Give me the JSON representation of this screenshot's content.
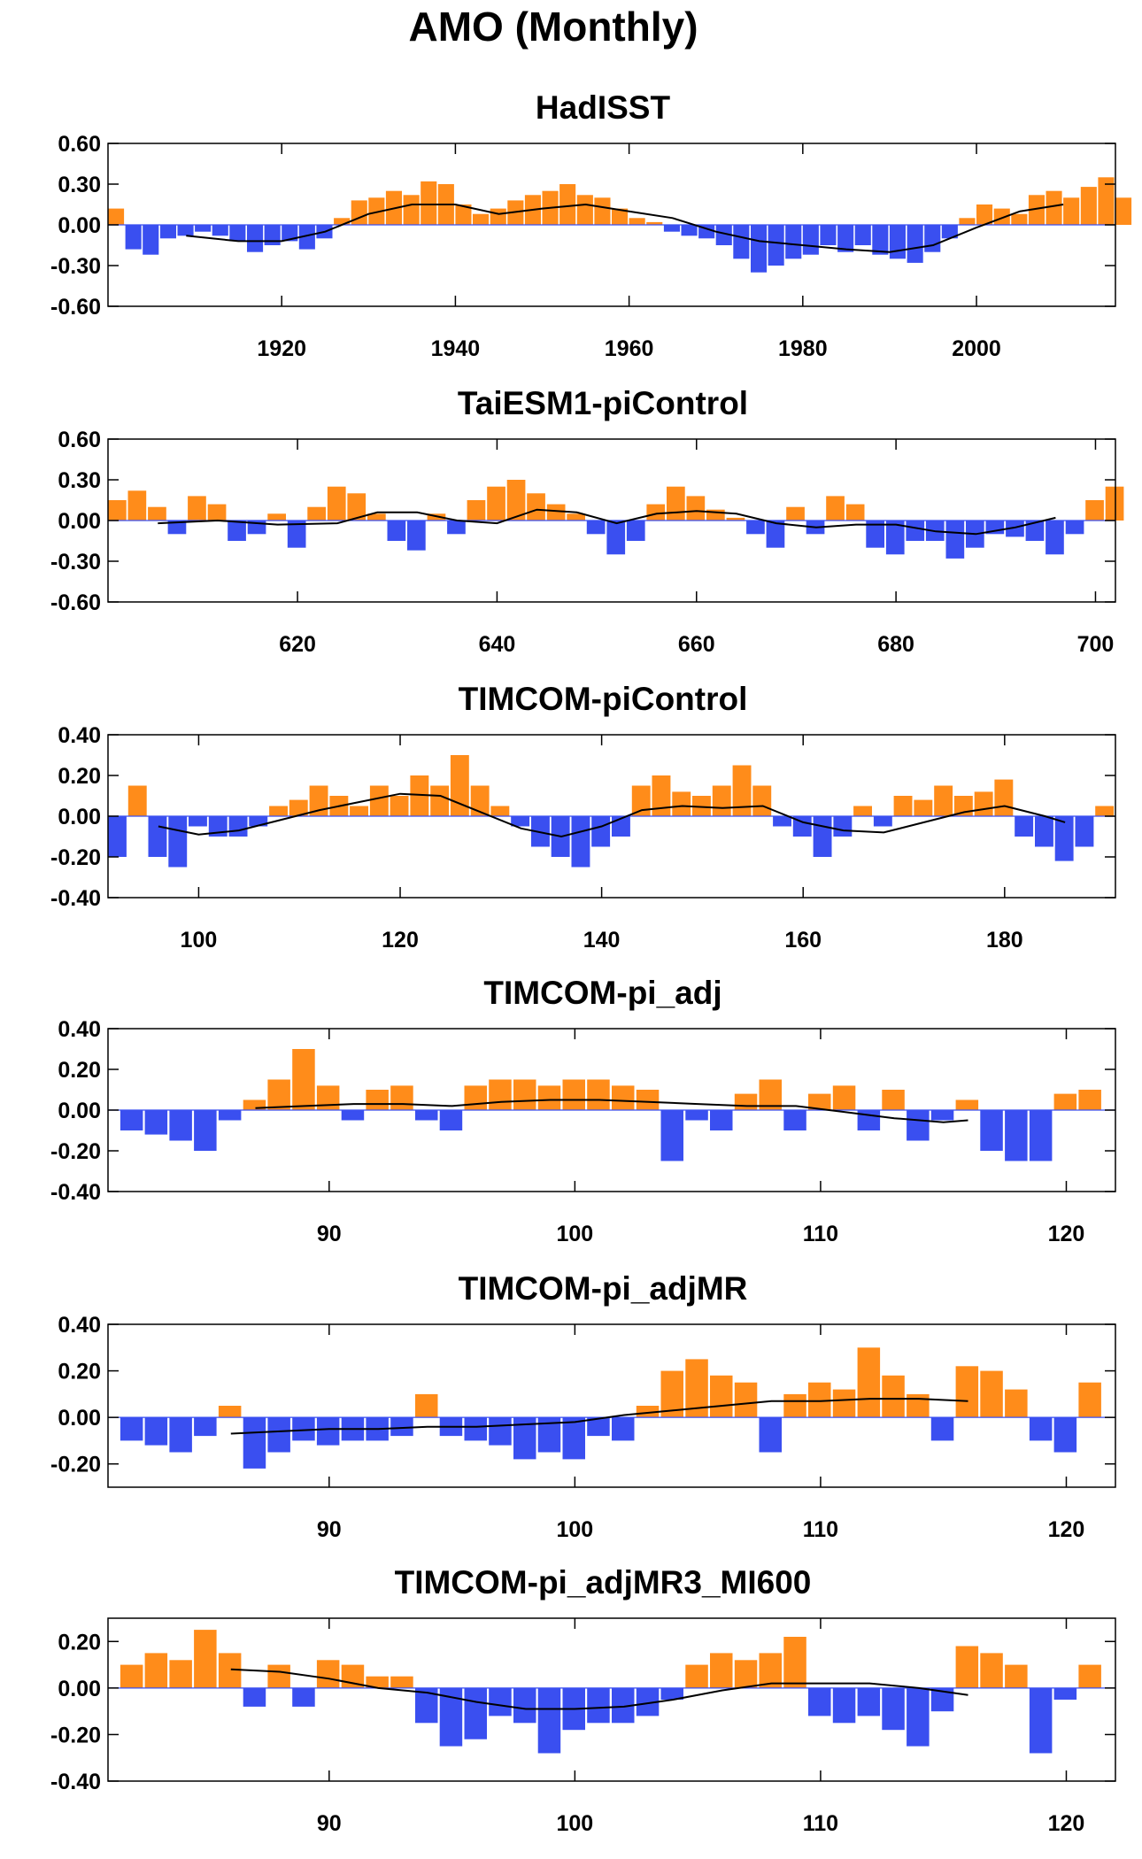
{
  "title": "AMO (Monthly)",
  "colors": {
    "positive": "#ff8c1a",
    "negative": "#3a4ff0",
    "smooth": "#000000",
    "frame": "#000000"
  },
  "chart_data": [
    {
      "type": "area",
      "title": "HadISST",
      "xlim": [
        1900,
        2016
      ],
      "ylim": [
        -0.6,
        0.6
      ],
      "x_ticks": [
        1920,
        1940,
        1960,
        1980,
        2000
      ],
      "x_tick_labels": [
        "1920",
        "1940",
        "1960",
        "1980",
        "2000"
      ],
      "y_ticks": [
        0.6,
        0.3,
        0.0,
        -0.3,
        -0.6
      ],
      "y_tick_labels": [
        "0.60",
        "0.30",
        "0.00",
        "-0.30",
        "-0.60"
      ],
      "series": [
        {
          "values_start": 1900,
          "values_step": 2,
          "values": [
            0.12,
            -0.18,
            -0.22,
            -0.1,
            -0.08,
            -0.05,
            -0.08,
            -0.12,
            -0.2,
            -0.15,
            -0.12,
            -0.18,
            -0.1,
            0.05,
            0.18,
            0.2,
            0.25,
            0.22,
            0.32,
            0.3,
            0.15,
            0.08,
            0.12,
            0.18,
            0.22,
            0.25,
            0.3,
            0.22,
            0.2,
            0.12,
            0.05,
            0.02,
            -0.05,
            -0.08,
            -0.1,
            -0.15,
            -0.25,
            -0.35,
            -0.3,
            -0.25,
            -0.22,
            -0.15,
            -0.2,
            -0.15,
            -0.22,
            -0.25,
            -0.28,
            -0.2,
            -0.1,
            0.05,
            0.15,
            0.12,
            0.08,
            0.22,
            0.25,
            0.2,
            0.28,
            0.35,
            0.2
          ]
        }
      ],
      "smooth": {
        "x": [
          1909,
          1915,
          1920,
          1925,
          1930,
          1935,
          1940,
          1945,
          1950,
          1955,
          1960,
          1965,
          1970,
          1975,
          1980,
          1985,
          1990,
          1995,
          2000,
          2005,
          2010
        ],
        "y": [
          -0.08,
          -0.12,
          -0.12,
          -0.05,
          0.08,
          0.15,
          0.15,
          0.08,
          0.12,
          0.15,
          0.1,
          0.05,
          -0.05,
          -0.12,
          -0.15,
          -0.18,
          -0.2,
          -0.15,
          -0.02,
          0.1,
          0.15
        ]
      }
    },
    {
      "type": "area",
      "title": "TaiESM1-piControl",
      "xlim": [
        601,
        702
      ],
      "ylim": [
        -0.6,
        0.6
      ],
      "x_ticks": [
        620,
        640,
        660,
        680,
        700
      ],
      "x_tick_labels": [
        "620",
        "640",
        "660",
        "680",
        "700"
      ],
      "y_ticks": [
        0.6,
        0.3,
        0.0,
        -0.3,
        -0.6
      ],
      "y_tick_labels": [
        "0.60",
        "0.30",
        "0.00",
        "-0.30",
        "-0.60"
      ],
      "series": [
        {
          "values_start": 601,
          "values_step": 2,
          "values": [
            0.15,
            0.22,
            0.1,
            -0.1,
            0.18,
            0.12,
            -0.15,
            -0.1,
            0.05,
            -0.2,
            0.1,
            0.25,
            0.2,
            0.05,
            -0.15,
            -0.22,
            0.05,
            -0.1,
            0.15,
            0.25,
            0.3,
            0.2,
            0.12,
            0.05,
            -0.1,
            -0.25,
            -0.15,
            0.12,
            0.25,
            0.18,
            0.08,
            0.02,
            -0.1,
            -0.2,
            0.1,
            -0.1,
            0.18,
            0.12,
            -0.2,
            -0.25,
            -0.15,
            -0.15,
            -0.28,
            -0.2,
            -0.1,
            -0.12,
            -0.15,
            -0.25,
            -0.1,
            0.15,
            0.25
          ]
        }
      ],
      "smooth": {
        "x": [
          606,
          612,
          618,
          624,
          628,
          632,
          636,
          640,
          644,
          648,
          652,
          656,
          660,
          664,
          668,
          672,
          676,
          680,
          684,
          688,
          692,
          696
        ],
        "y": [
          -0.02,
          0.0,
          -0.03,
          -0.02,
          0.06,
          0.06,
          0.0,
          -0.02,
          0.08,
          0.06,
          -0.02,
          0.05,
          0.07,
          0.05,
          -0.02,
          -0.05,
          -0.03,
          -0.03,
          -0.08,
          -0.1,
          -0.05,
          0.02
        ]
      }
    },
    {
      "type": "area",
      "title": "TIMCOM-piControl",
      "xlim": [
        91,
        191
      ],
      "ylim": [
        -0.4,
        0.4
      ],
      "x_ticks": [
        100,
        120,
        140,
        160,
        180
      ],
      "x_tick_labels": [
        "100",
        "120",
        "140",
        "160",
        "180"
      ],
      "y_ticks": [
        0.4,
        0.2,
        0.0,
        -0.2,
        -0.4
      ],
      "y_tick_labels": [
        "0.40",
        "0.20",
        "0.00",
        "-0.20",
        "-0.40"
      ],
      "series": [
        {
          "values_start": 91,
          "values_step": 2,
          "values": [
            -0.2,
            0.15,
            -0.2,
            -0.25,
            -0.05,
            -0.1,
            -0.1,
            -0.05,
            0.05,
            0.08,
            0.15,
            0.1,
            0.05,
            0.15,
            0.1,
            0.2,
            0.15,
            0.3,
            0.15,
            0.05,
            -0.05,
            -0.15,
            -0.2,
            -0.25,
            -0.15,
            -0.1,
            0.15,
            0.2,
            0.12,
            0.1,
            0.15,
            0.25,
            0.15,
            -0.05,
            -0.1,
            -0.2,
            -0.1,
            0.05,
            -0.05,
            0.1,
            0.08,
            0.15,
            0.1,
            0.12,
            0.18,
            -0.1,
            -0.15,
            -0.22,
            -0.15,
            0.05
          ]
        }
      ],
      "smooth": {
        "x": [
          96,
          100,
          104,
          108,
          112,
          116,
          120,
          124,
          128,
          132,
          136,
          140,
          144,
          148,
          152,
          156,
          160,
          164,
          168,
          172,
          176,
          180,
          184,
          186
        ],
        "y": [
          -0.05,
          -0.09,
          -0.07,
          -0.02,
          0.03,
          0.07,
          0.11,
          0.1,
          0.02,
          -0.06,
          -0.1,
          -0.05,
          0.03,
          0.05,
          0.04,
          0.05,
          -0.03,
          -0.07,
          -0.08,
          -0.03,
          0.02,
          0.05,
          0.0,
          -0.03
        ]
      }
    },
    {
      "type": "area",
      "title": "TIMCOM-pi_adj",
      "xlim": [
        81,
        122
      ],
      "ylim": [
        -0.4,
        0.4
      ],
      "x_ticks": [
        90,
        100,
        110,
        120
      ],
      "x_tick_labels": [
        "90",
        "100",
        "110",
        "120"
      ],
      "y_ticks": [
        0.4,
        0.2,
        0.0,
        -0.2,
        -0.4
      ],
      "y_tick_labels": [
        "0.40",
        "0.20",
        "0.00",
        "-0.20",
        "-0.40"
      ],
      "series": [
        {
          "values_start": 81.5,
          "values_step": 1,
          "values": [
            -0.1,
            -0.12,
            -0.15,
            -0.2,
            -0.05,
            0.05,
            0.15,
            0.3,
            0.12,
            -0.05,
            0.1,
            0.12,
            -0.05,
            -0.1,
            0.12,
            0.15,
            0.15,
            0.12,
            0.15,
            0.15,
            0.12,
            0.1,
            -0.25,
            -0.05,
            -0.1,
            0.08,
            0.15,
            -0.1,
            0.08,
            0.12,
            -0.1,
            0.1,
            -0.15,
            -0.05,
            0.05,
            -0.2,
            -0.25,
            -0.25,
            0.08,
            0.1
          ]
        }
      ],
      "smooth": {
        "x": [
          87,
          89,
          91,
          93,
          95,
          97,
          99,
          101,
          103,
          105,
          107,
          109,
          111,
          113,
          115,
          116
        ],
        "y": [
          0.01,
          0.02,
          0.03,
          0.03,
          0.02,
          0.04,
          0.05,
          0.05,
          0.04,
          0.03,
          0.02,
          0.02,
          -0.01,
          -0.04,
          -0.06,
          -0.05
        ]
      }
    },
    {
      "type": "area",
      "title": "TIMCOM-pi_adjMR",
      "xlim": [
        81,
        122
      ],
      "ylim": [
        -0.3,
        0.4
      ],
      "x_ticks": [
        90,
        100,
        110,
        120
      ],
      "x_tick_labels": [
        "90",
        "100",
        "110",
        "120"
      ],
      "y_ticks": [
        0.4,
        0.2,
        0.0,
        -0.2
      ],
      "y_tick_labels": [
        "0.40",
        "0.20",
        "0.00",
        "-0.20"
      ],
      "series": [
        {
          "values_start": 81.5,
          "values_step": 1,
          "values": [
            -0.1,
            -0.12,
            -0.15,
            -0.08,
            0.05,
            -0.22,
            -0.15,
            -0.1,
            -0.12,
            -0.1,
            -0.1,
            -0.08,
            0.1,
            -0.08,
            -0.1,
            -0.12,
            -0.18,
            -0.15,
            -0.18,
            -0.08,
            -0.1,
            0.05,
            0.2,
            0.25,
            0.18,
            0.15,
            -0.15,
            0.1,
            0.15,
            0.12,
            0.3,
            0.18,
            0.1,
            -0.1,
            0.22,
            0.2,
            0.12,
            -0.1,
            -0.15,
            0.15
          ]
        }
      ],
      "smooth": {
        "x": [
          86,
          88,
          90,
          92,
          94,
          96,
          98,
          100,
          102,
          104,
          106,
          108,
          110,
          112,
          114,
          116
        ],
        "y": [
          -0.07,
          -0.06,
          -0.05,
          -0.05,
          -0.04,
          -0.04,
          -0.03,
          -0.02,
          0.01,
          0.03,
          0.05,
          0.07,
          0.07,
          0.08,
          0.08,
          0.07
        ]
      }
    },
    {
      "type": "area",
      "title": "TIMCOM-pi_adjMR3_MI600",
      "xlim": [
        81,
        122
      ],
      "ylim": [
        -0.4,
        0.3
      ],
      "x_ticks": [
        90,
        100,
        110,
        120
      ],
      "x_tick_labels": [
        "90",
        "100",
        "110",
        "120"
      ],
      "y_ticks": [
        0.2,
        0.0,
        -0.2,
        -0.4
      ],
      "y_tick_labels": [
        "0.20",
        "0.00",
        "-0.20",
        "-0.40"
      ],
      "series": [
        {
          "values_start": 81.5,
          "values_step": 1,
          "values": [
            0.1,
            0.15,
            0.12,
            0.25,
            0.15,
            -0.08,
            0.1,
            -0.08,
            0.12,
            0.1,
            0.05,
            0.05,
            -0.15,
            -0.25,
            -0.22,
            -0.12,
            -0.15,
            -0.28,
            -0.18,
            -0.15,
            -0.15,
            -0.12,
            -0.05,
            0.1,
            0.15,
            0.12,
            0.15,
            0.22,
            -0.12,
            -0.15,
            -0.12,
            -0.18,
            -0.25,
            -0.1,
            0.18,
            0.15,
            0.1,
            -0.28,
            -0.05,
            0.1
          ]
        }
      ],
      "smooth": {
        "x": [
          86,
          88,
          90,
          92,
          94,
          96,
          98,
          100,
          102,
          104,
          106,
          108,
          110,
          112,
          114,
          116
        ],
        "y": [
          0.08,
          0.07,
          0.04,
          0.0,
          -0.02,
          -0.06,
          -0.09,
          -0.09,
          -0.08,
          -0.05,
          -0.01,
          0.02,
          0.02,
          0.02,
          0.0,
          -0.03
        ]
      }
    }
  ]
}
